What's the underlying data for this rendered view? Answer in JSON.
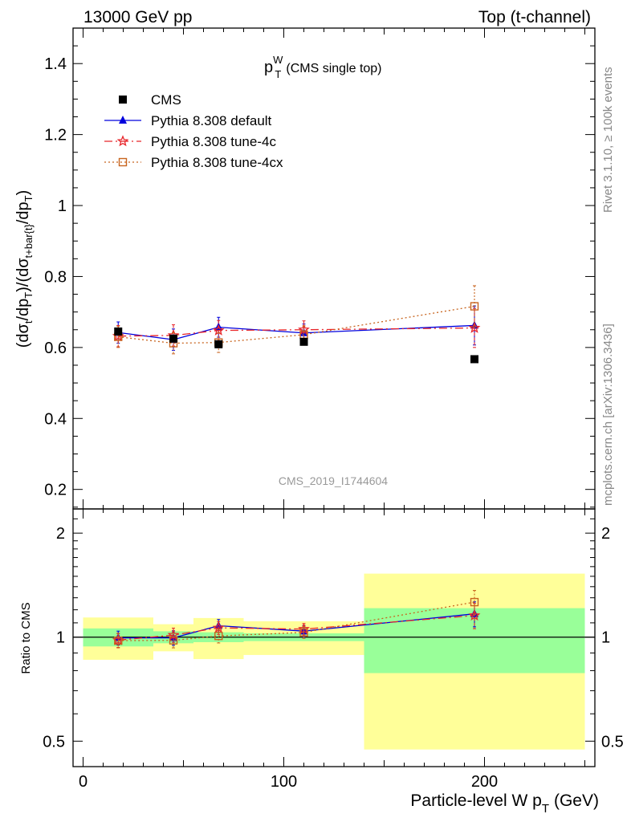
{
  "header": {
    "left": "13000 GeV pp",
    "right": "Top (t-channel)"
  },
  "side_labels": {
    "rivet": "Rivet 3.1.10, ≥ 100k events",
    "mcplots": "mcplots.cern.ch [arXiv:1306.3436]"
  },
  "chart_data": [
    {
      "type": "line",
      "panel": "main",
      "title_main": "p",
      "title_sup": "W",
      "title_sub": "T",
      "title_note": "(CMS single top)",
      "ylabel_parts": [
        "(dσ",
        "t",
        "/dp",
        "T",
        ")/(dσ",
        "t+bar{t}",
        "/dp",
        "T",
        ")"
      ],
      "analysis_label": "CMS_2019_I1744604",
      "xlim": [
        -5,
        255
      ],
      "ylim": [
        0.145,
        1.5
      ],
      "yticks": [
        0.2,
        0.4,
        0.6,
        0.8,
        1,
        1.2,
        1.4
      ],
      "ytick_labels": [
        "0.2",
        "0.4",
        "0.6",
        "0.8",
        "1",
        "1.2",
        "1.4"
      ],
      "legend_position": "top-left",
      "bins": [
        [
          0,
          35
        ],
        [
          35,
          55
        ],
        [
          55,
          80
        ],
        [
          80,
          140
        ],
        [
          140,
          250
        ]
      ],
      "data": {
        "name": "CMS",
        "x": [
          17.5,
          45,
          67.5,
          110,
          195
        ],
        "y": [
          0.645,
          0.625,
          0.609,
          0.616,
          0.567
        ],
        "band_inner": [
          [
            0.606,
            0.684
          ],
          [
            0.6,
            0.65
          ],
          [
            0.589,
            0.629
          ],
          [
            0.6,
            0.632
          ],
          [
            0.446,
            0.688
          ]
        ],
        "band_outer": [
          [
            0.555,
            0.735
          ],
          [
            0.569,
            0.681
          ],
          [
            0.526,
            0.692
          ],
          [
            0.547,
            0.685
          ],
          [
            0.268,
            0.866
          ]
        ]
      },
      "series": [
        {
          "name": "Pythia 8.308 default",
          "color": "#0000dd",
          "marker": "triangle",
          "dash": "",
          "x": [
            17.5,
            45,
            67.5,
            110,
            195
          ],
          "y": [
            0.642,
            0.622,
            0.657,
            0.641,
            0.662
          ],
          "err": [
            0.03,
            0.03,
            0.028,
            0.025,
            0.055
          ]
        },
        {
          "name": "Pythia 8.308 tune-4c",
          "color": "#e8262b",
          "marker": "star",
          "dash": "10,4,2,4",
          "x": [
            17.5,
            45,
            67.5,
            110,
            195
          ],
          "y": [
            0.632,
            0.634,
            0.648,
            0.65,
            0.655
          ],
          "err": [
            0.03,
            0.03,
            0.028,
            0.025,
            0.055
          ]
        },
        {
          "name": "Pythia 8.308 tune-4cx",
          "color": "#c8641e",
          "marker": "square-open",
          "dash": "2,3",
          "x": [
            17.5,
            45,
            67.5,
            110,
            195
          ],
          "y": [
            0.63,
            0.612,
            0.614,
            0.636,
            0.716
          ],
          "err": [
            0.03,
            0.03,
            0.028,
            0.025,
            0.058
          ]
        }
      ]
    },
    {
      "type": "line",
      "panel": "ratio",
      "ylabel": "Ratio to CMS",
      "xlabel_main": "Particle-level W p",
      "xlabel_sub": "T",
      "xlabel_unit": "(GeV)",
      "xlim": [
        -5,
        255
      ],
      "ylim": [
        0.422,
        2.35
      ],
      "yscale": "log",
      "yticks": [
        0.5,
        1,
        2
      ],
      "ytick_labels": [
        "0.5",
        "1",
        "2"
      ],
      "xticks": [
        0,
        100,
        200
      ],
      "xtick_labels": [
        "0",
        "100",
        "200"
      ],
      "reference_line": 1,
      "bins": [
        [
          0,
          35
        ],
        [
          35,
          55
        ],
        [
          55,
          80
        ],
        [
          80,
          140
        ],
        [
          140,
          250
        ]
      ],
      "band_inner": [
        [
          0.94,
          1.06
        ],
        [
          0.96,
          1.04
        ],
        [
          0.967,
          1.033
        ],
        [
          0.974,
          1.026
        ],
        [
          0.787,
          1.213
        ]
      ],
      "band_outer": [
        [
          0.86,
          1.14
        ],
        [
          0.91,
          1.09
        ],
        [
          0.864,
          1.136
        ],
        [
          0.888,
          1.112
        ],
        [
          0.473,
          1.527
        ]
      ],
      "series": [
        {
          "name": "Pythia 8.308 default",
          "color": "#0000dd",
          "marker": "triangle",
          "dash": "",
          "x": [
            17.5,
            45,
            67.5,
            110,
            195
          ],
          "y": [
            0.995,
            0.995,
            1.079,
            1.041,
            1.168
          ],
          "err": [
            0.046,
            0.048,
            0.046,
            0.04,
            0.097
          ]
        },
        {
          "name": "Pythia 8.308 tune-4c",
          "color": "#e8262b",
          "marker": "star",
          "dash": "10,4,2,4",
          "x": [
            17.5,
            45,
            67.5,
            110,
            195
          ],
          "y": [
            0.98,
            1.014,
            1.064,
            1.055,
            1.155
          ],
          "err": [
            0.046,
            0.048,
            0.046,
            0.04,
            0.097
          ]
        },
        {
          "name": "Pythia 8.308 tune-4cx",
          "color": "#c8641e",
          "marker": "square-open",
          "dash": "2,3",
          "x": [
            17.5,
            45,
            67.5,
            110,
            195
          ],
          "y": [
            0.977,
            0.979,
            1.008,
            1.032,
            1.263
          ],
          "err": [
            0.046,
            0.048,
            0.046,
            0.04,
            0.102
          ]
        }
      ]
    }
  ]
}
